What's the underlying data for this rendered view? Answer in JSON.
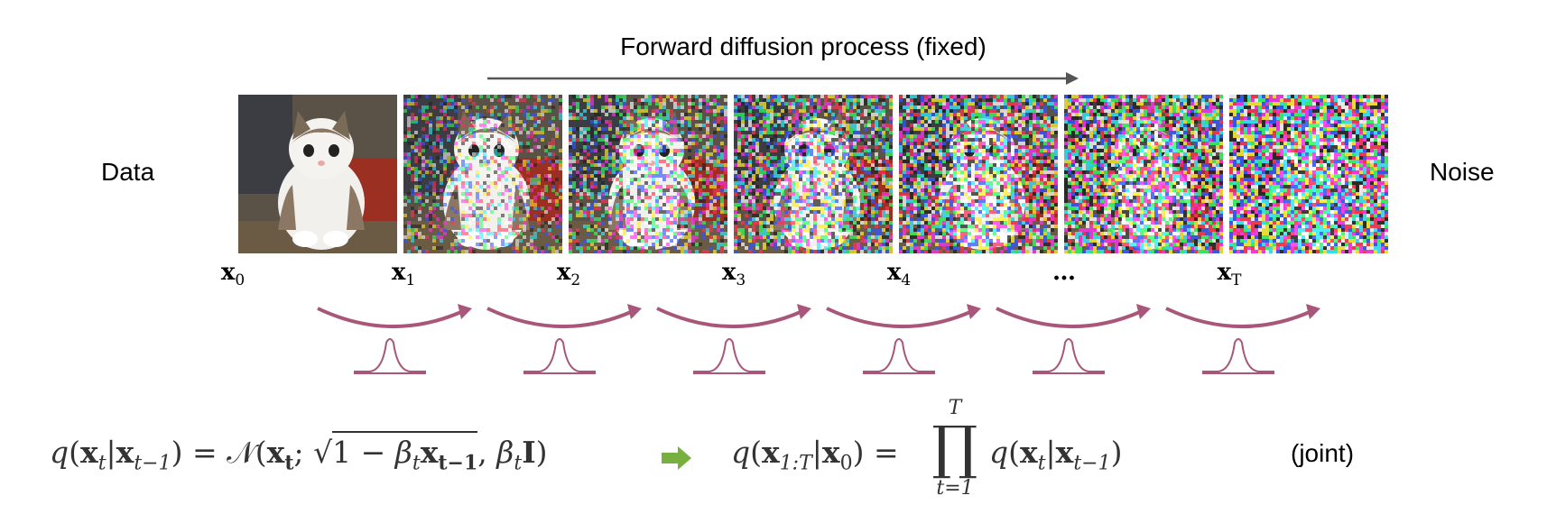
{
  "title": "Forward diffusion process (fixed)",
  "left_label": "Data",
  "right_label": "Noise",
  "steps": [
    {
      "var": "x",
      "sub": "0",
      "noise": 0
    },
    {
      "var": "x",
      "sub": "1",
      "noise": 0.45
    },
    {
      "var": "x",
      "sub": "2",
      "noise": 0.6
    },
    {
      "var": "x",
      "sub": "3",
      "noise": 0.72
    },
    {
      "var": "x",
      "sub": "4",
      "noise": 0.82
    },
    {
      "var": "…",
      "sub": "",
      "noise": 0.92
    },
    {
      "var": "x",
      "sub": "T",
      "noise": 1.0
    }
  ],
  "equation_left": {
    "lhs": "q(x",
    "t": "t",
    "bar": "|x",
    "tm1": "t−1",
    "eq": ") = 𝒩(",
    "xt": "x",
    "tb": "t",
    "semi": "; ",
    "sqrt_body": "1 − β",
    "bt": "t",
    "x2": "x",
    "tm1b": "t−1",
    "comma": ", β",
    "bt2": "t",
    "I": "I",
    "close": ")"
  },
  "equation_right": {
    "lhs": "q(x",
    "range": "1:T",
    "bar": "|x",
    "zero": "0",
    "eq": ") =",
    "prod_top": "T",
    "prod_bottom": "t=1",
    "rhs": "q(x",
    "t": "t",
    "bar2": "|x",
    "tm1": "t−1",
    "close": ")"
  },
  "joint_label": "(joint)",
  "colors": {
    "arrow_gray": "#555555",
    "transition_arrow": "#a8567a",
    "implication_arrow": "#77b03e"
  }
}
